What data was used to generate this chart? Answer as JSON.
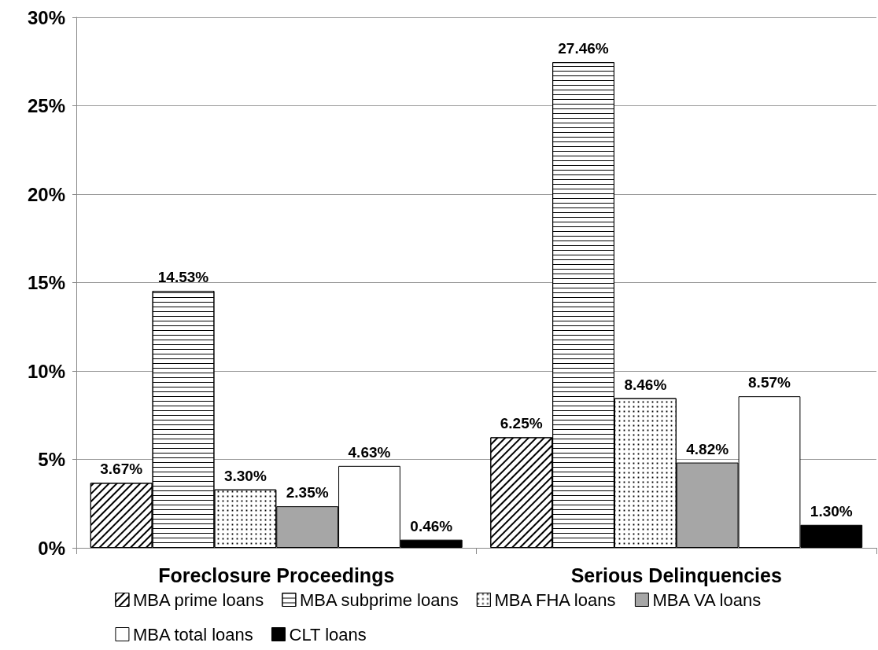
{
  "chart_data": {
    "type": "bar",
    "categories": [
      "Foreclosure Proceedings",
      "Serious Delinquencies"
    ],
    "series": [
      {
        "name": "MBA prime loans",
        "color": "#ffffff",
        "values": [
          3.67,
          6.25
        ],
        "value_labels": [
          "3.67%",
          "6.25%"
        ]
      },
      {
        "name": "MBA subprime loans",
        "color": "#ffffff",
        "values": [
          14.53,
          27.46
        ],
        "value_labels": [
          "14.53%",
          "27.46%"
        ]
      },
      {
        "name": "MBA FHA loans",
        "color": "#ffffff",
        "values": [
          3.3,
          8.46
        ],
        "value_labels": [
          "3.30%",
          "8.46%"
        ]
      },
      {
        "name": "MBA VA loans",
        "color": "#a6a6a6",
        "values": [
          2.35,
          4.82
        ],
        "value_labels": [
          "2.35%",
          "4.82%"
        ]
      },
      {
        "name": "MBA total loans",
        "color": "#ffffff",
        "values": [
          4.63,
          8.57
        ],
        "value_labels": [
          "4.63%",
          "8.57%"
        ]
      },
      {
        "name": "CLT loans",
        "color": "#000000",
        "values": [
          0.46,
          1.3
        ],
        "value_labels": [
          "0.46%",
          "1.30%"
        ]
      }
    ],
    "ylim": [
      0,
      30
    ],
    "yticks": [
      {
        "value": 0,
        "label": "0%"
      },
      {
        "value": 5,
        "label": "5%"
      },
      {
        "value": 10,
        "label": "10%"
      },
      {
        "value": 15,
        "label": "15%"
      },
      {
        "value": 20,
        "label": "20%"
      },
      {
        "value": 25,
        "label": "25%"
      },
      {
        "value": 30,
        "label": "30%"
      }
    ],
    "grid": "y",
    "legend": "bottom"
  }
}
